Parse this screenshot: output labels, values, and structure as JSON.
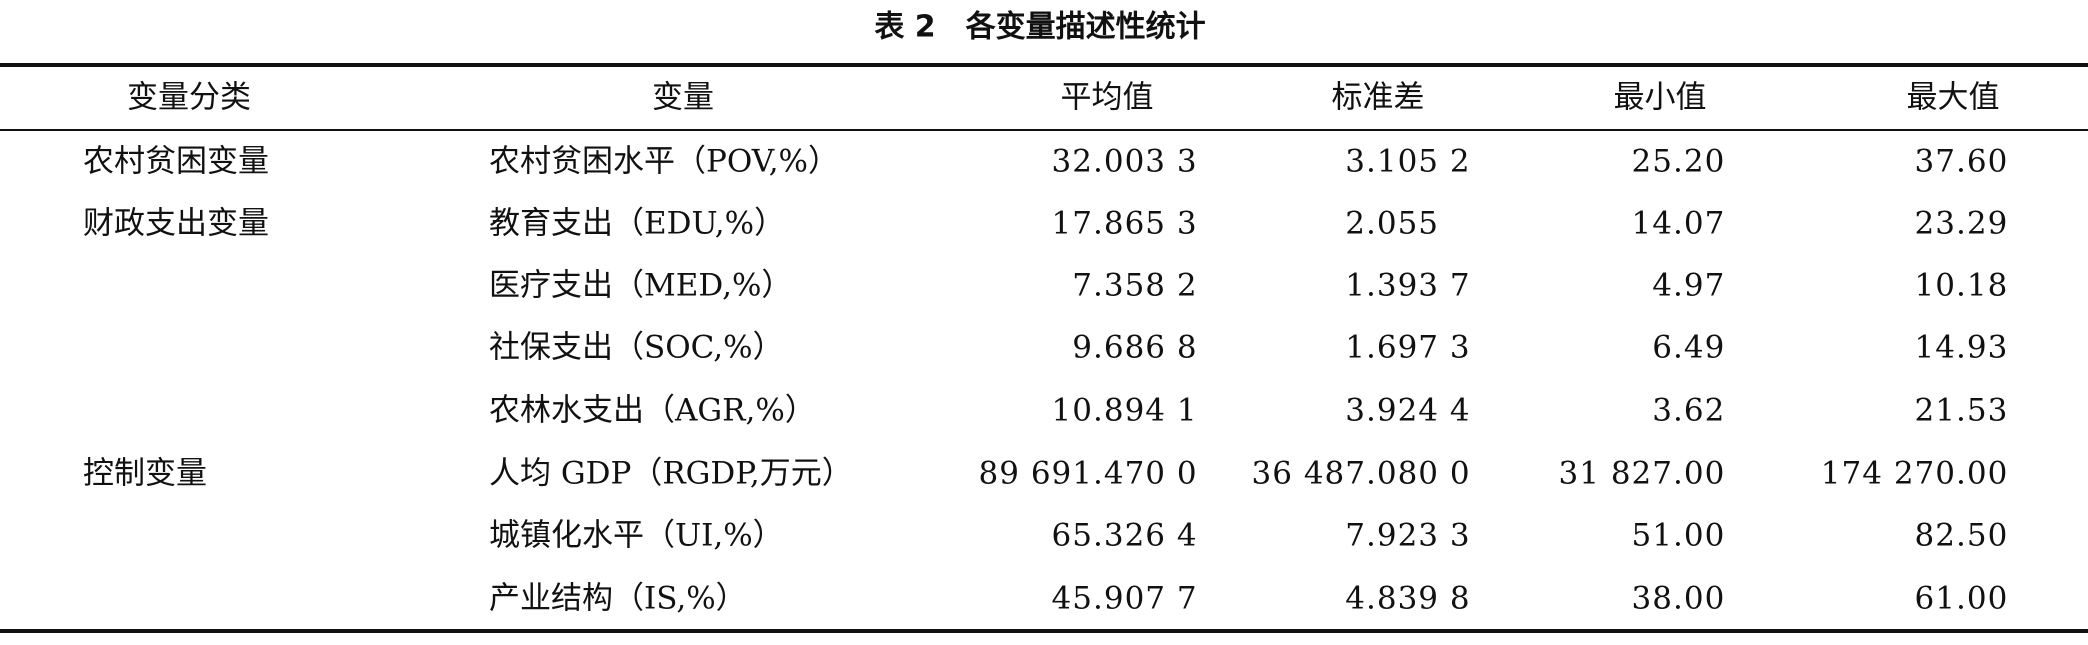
{
  "title": "表 2　各变量描述性统计",
  "table": {
    "header": [
      "变量分类",
      "变量",
      "平均值",
      "标准差",
      "最小值",
      "最大值"
    ],
    "rows": [
      [
        "农村贫困变量",
        "农村贫困水平（POV,%）",
        "32.003 3",
        "3.105 2",
        "25.20",
        "37.60"
      ],
      [
        "财政支出变量",
        "教育支出（EDU,%）",
        "17.865 3",
        "2.055",
        "14.07",
        "23.29"
      ],
      [
        null,
        "医疗支出（MED,%）",
        "7.358 2",
        "1.393 7",
        "4.97",
        "10.18"
      ],
      [
        null,
        "社保支出（SOC,%）",
        "9.686 8",
        "1.697 3",
        "6.49",
        "14.93"
      ],
      [
        null,
        "农林水支出（AGR,%）",
        "10.894 1",
        "3.924 4",
        "3.62",
        "21.53"
      ],
      [
        "控制变量",
        "人均 GDP（RGDP,万元）",
        "89 691.470 0",
        "36 487.080 0",
        "31 827.00",
        "174 270.00"
      ],
      [
        null,
        "城镇化水平（UI,%）",
        "65.326 4",
        "7.923 3",
        "51.00",
        "82.50"
      ],
      [
        null,
        "产业结构（IS,%）",
        "45.907 7",
        "4.839 8",
        "38.00",
        "61.00"
      ]
    ]
  }
}
